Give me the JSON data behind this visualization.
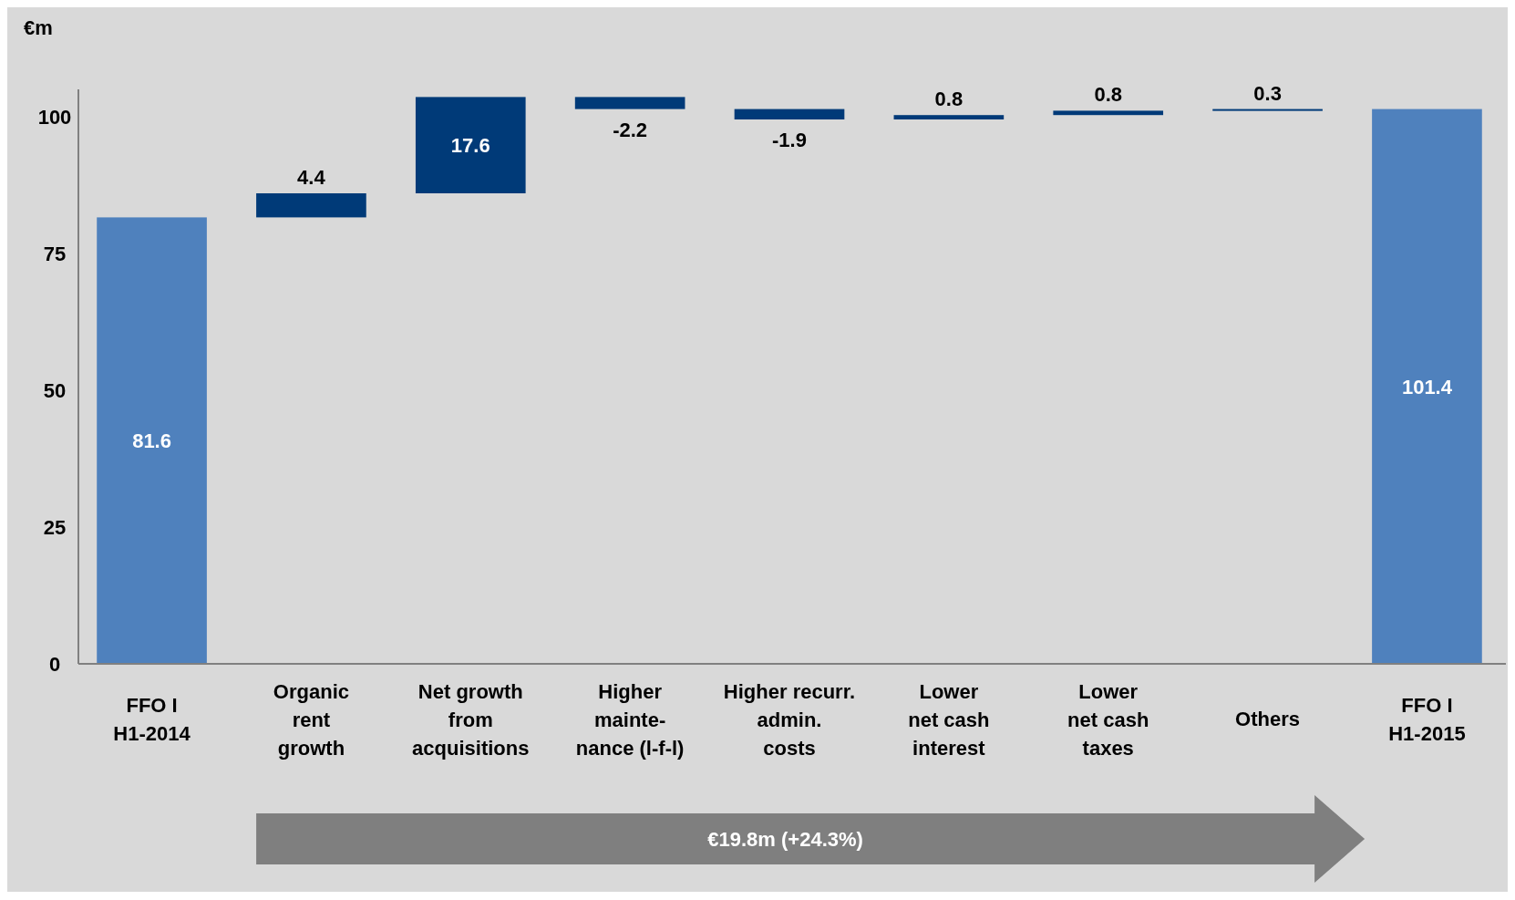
{
  "chart_data": {
    "type": "bar",
    "ylabel": "€m",
    "categories": [
      "FFO I\nH1-2014",
      "Organic\nrent\ngrowth",
      "Net growth\nfrom\nacquisitions",
      "Higher\nmainte-\nnance (l-f-l)",
      "Higher recurr.\nadmin.\ncosts",
      "Lower\nnet cash\ninterest",
      "Lower\nnet cash\ntaxes",
      "Others",
      "FFO I\nH1-2015"
    ],
    "values": [
      81.6,
      4.4,
      17.6,
      -2.2,
      -1.9,
      0.8,
      0.8,
      0.3,
      101.4
    ],
    "base": [
      0,
      81.6,
      86.0,
      103.6,
      101.4,
      99.5,
      100.3,
      101.1,
      0
    ],
    "colors": [
      "#4f81bd",
      "#003a78",
      "#003a78",
      "#003a78",
      "#003a78",
      "#003a78",
      "#003a78",
      "#003a78",
      "#4f81bd"
    ],
    "ylim": [
      0,
      105
    ],
    "yticks": [
      0,
      25,
      50,
      75,
      100
    ],
    "data_labels": true,
    "annotations": [
      "€19.8m (+24.3%)"
    ]
  }
}
